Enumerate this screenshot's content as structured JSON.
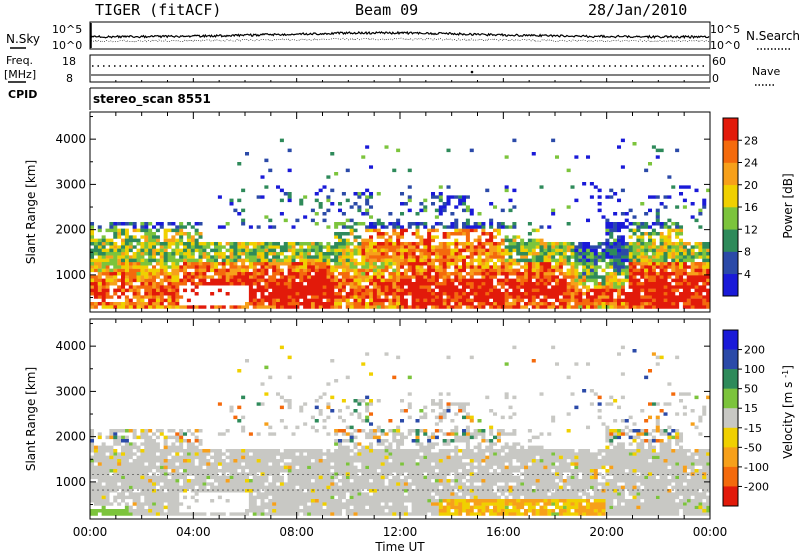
{
  "header": {
    "radar": "TIGER (fitACF)",
    "beam": "Beam 09",
    "date": "28/Jan/2010"
  },
  "panels": {
    "nsky": {
      "left_label": "N.Sky",
      "right_label": "N.Search",
      "left_ticks": [
        "10^5",
        "10^0"
      ],
      "right_ticks": [
        "10^5",
        "10^0"
      ]
    },
    "freq": {
      "left_label_1": "Freq.",
      "left_label_2": "[MHz]",
      "right_label": "Nave",
      "left_ticks": [
        "18",
        "8"
      ],
      "right_ticks": [
        "60",
        "0"
      ]
    },
    "cpid": {
      "label": "CPID",
      "value": "stereo_scan 8551"
    }
  },
  "colors": {
    "white": "#ffffff",
    "black": "#000000",
    "power": [
      "#1a1ad8",
      "#2b4aa8",
      "#2e8a5a",
      "#7cc43c",
      "#f0d000",
      "#f7a01a",
      "#f46a0c",
      "#e21a0a"
    ],
    "velocity": [
      "#1a1ad8",
      "#2b4aa8",
      "#2e8a5a",
      "#7cc43c",
      "#c8c8c4",
      "#f0d000",
      "#f7a01a",
      "#f46a0c",
      "#e21a0a"
    ]
  },
  "chart_data": [
    {
      "type": "heatmap",
      "name": "power",
      "ylabel": "Slant Range [km]",
      "yticks": [
        "1000",
        "2000",
        "3000",
        "4000"
      ],
      "ytick_values": [
        1000,
        2000,
        3000,
        4000
      ],
      "ylim": [
        180,
        4600
      ],
      "xlim_hours": [
        0,
        24
      ],
      "colorbar_label": "Power [dB]",
      "colorbar_ticks": [
        "4",
        "8",
        "12",
        "16",
        "20",
        "24",
        "28"
      ],
      "colorbar_range": [
        0,
        32
      ],
      "grid": false
    },
    {
      "type": "heatmap",
      "name": "velocity",
      "ylabel": "Slant Range [km]",
      "yticks": [
        "1000",
        "2000",
        "3000",
        "4000"
      ],
      "ytick_values": [
        1000,
        2000,
        3000,
        4000
      ],
      "ylim": [
        180,
        4600
      ],
      "xlim_hours": [
        0,
        24
      ],
      "colorbar_label": "Velocity [m s^-1]",
      "colorbar_ticks": [
        "200",
        "100",
        "50",
        "15",
        "-15",
        "-50",
        "-100",
        "-200"
      ],
      "grid": false
    }
  ],
  "xaxis": {
    "label": "Time UT",
    "ticks": [
      "00:00",
      "04:00",
      "08:00",
      "12:00",
      "16:00",
      "20:00",
      "00:00"
    ],
    "tick_hours": [
      0,
      4,
      8,
      12,
      16,
      20,
      24
    ]
  }
}
